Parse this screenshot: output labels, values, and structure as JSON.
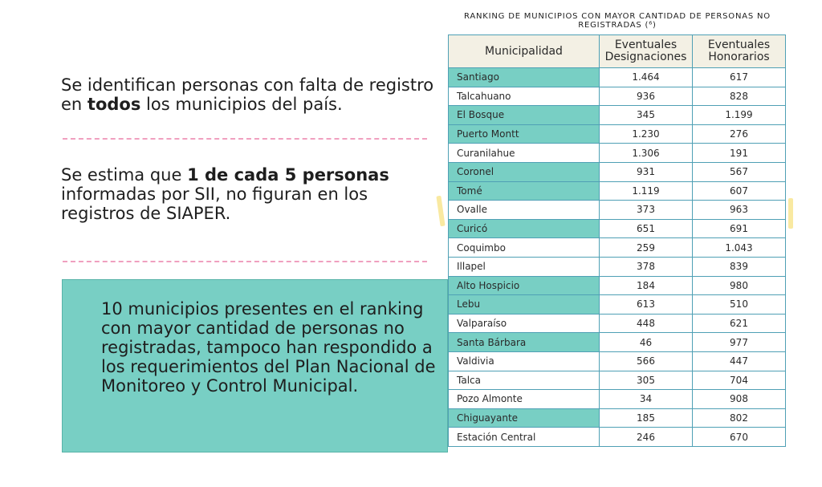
{
  "statement1": {
    "pre": "Se identifican personas con falta de registro en ",
    "bold": "todos",
    "post": " los municipios del país."
  },
  "statement2": {
    "pre": "Se estima que ",
    "bold": "1 de cada 5 personas",
    "post": " informadas por SII, no figuran en los registros de SIAPER."
  },
  "callout": {
    "text": "10 municipios presentes en el ranking con mayor cantidad de personas no registradas, tampoco han respondido a los requerimientos del Plan Nacional de Monitoreo y Control Municipal."
  },
  "table": {
    "title": "RANKING DE MUNICIPIOS CON MAYOR CANTIDAD DE PERSONAS NO REGISTRADAS (⁶)",
    "headers": [
      "Municipalidad",
      "Eventuales Designaciones",
      "Eventuales Honorarios"
    ],
    "highlight_color": "#78cfc4",
    "rows": [
      {
        "name": "Santiago",
        "designaciones": "1.464",
        "honorarios": "617",
        "highlighted": true
      },
      {
        "name": "Talcahuano",
        "designaciones": "936",
        "honorarios": "828",
        "highlighted": false
      },
      {
        "name": "El Bosque",
        "designaciones": "345",
        "honorarios": "1.199",
        "highlighted": true
      },
      {
        "name": "Puerto Montt",
        "designaciones": "1.230",
        "honorarios": "276",
        "highlighted": true
      },
      {
        "name": "Curanilahue",
        "designaciones": "1.306",
        "honorarios": "191",
        "highlighted": false
      },
      {
        "name": "Coronel",
        "designaciones": "931",
        "honorarios": "567",
        "highlighted": true
      },
      {
        "name": "Tomé",
        "designaciones": "1.119",
        "honorarios": "607",
        "highlighted": true
      },
      {
        "name": "Ovalle",
        "designaciones": "373",
        "honorarios": "963",
        "highlighted": false
      },
      {
        "name": "Curicó",
        "designaciones": "651",
        "honorarios": "691",
        "highlighted": true
      },
      {
        "name": "Coquimbo",
        "designaciones": "259",
        "honorarios": "1.043",
        "highlighted": false
      },
      {
        "name": "Illapel",
        "designaciones": "378",
        "honorarios": "839",
        "highlighted": false
      },
      {
        "name": "Alto Hospicio",
        "designaciones": "184",
        "honorarios": "980",
        "highlighted": true
      },
      {
        "name": "Lebu",
        "designaciones": "613",
        "honorarios": "510",
        "highlighted": true
      },
      {
        "name": "Valparaíso",
        "designaciones": "448",
        "honorarios": "621",
        "highlighted": false
      },
      {
        "name": "Santa  Bárbara",
        "designaciones": "46",
        "honorarios": "977",
        "highlighted": true
      },
      {
        "name": "Valdivia",
        "designaciones": "566",
        "honorarios": "447",
        "highlighted": false
      },
      {
        "name": "Talca",
        "designaciones": "305",
        "honorarios": "704",
        "highlighted": false
      },
      {
        "name": "Pozo Almonte",
        "designaciones": "34",
        "honorarios": "908",
        "highlighted": false
      },
      {
        "name": "Chiguayante",
        "designaciones": "185",
        "honorarios": "802",
        "highlighted": true
      },
      {
        "name": "Estación Central",
        "designaciones": "246",
        "honorarios": "670",
        "highlighted": false
      }
    ]
  }
}
